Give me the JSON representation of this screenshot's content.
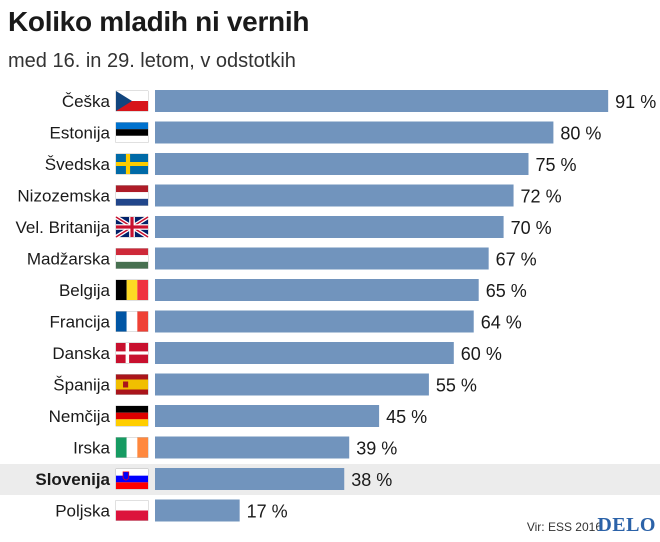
{
  "chart_data": {
    "type": "bar",
    "orientation": "horizontal",
    "title": "Koliko mladih ni vernih",
    "subtitle": "med 16. in 29. letom, v odstotkih",
    "categories": [
      "Češka",
      "Estonija",
      "Švedska",
      "Nizozemska",
      "Vel. Britanija",
      "Madžarska",
      "Belgija",
      "Francija",
      "Danska",
      "Španija",
      "Nemčija",
      "Irska",
      "Slovenija",
      "Poljska"
    ],
    "values": [
      91,
      80,
      75,
      72,
      70,
      67,
      65,
      64,
      60,
      55,
      45,
      39,
      38,
      17
    ],
    "value_labels": [
      "91 %",
      "80 %",
      "75 %",
      "72 %",
      "70 %",
      "67 %",
      "65 %",
      "64 %",
      "60 %",
      "55 %",
      "45 %",
      "39 %",
      "38 %",
      "17 %"
    ],
    "highlighted": "Slovenija",
    "xlim": [
      0,
      100
    ],
    "grid": false,
    "bar_color": "#7194bd",
    "highlight_color": "#ececec"
  },
  "source": "Vir: ESS 2016",
  "logo": "DELO",
  "flags": [
    "czech-flag-icon",
    "estonia-flag-icon",
    "sweden-flag-icon",
    "netherlands-flag-icon",
    "uk-flag-icon",
    "hungary-flag-icon",
    "belgium-flag-icon",
    "france-flag-icon",
    "denmark-flag-icon",
    "spain-flag-icon",
    "germany-flag-icon",
    "ireland-flag-icon",
    "slovenia-flag-icon",
    "poland-flag-icon"
  ]
}
